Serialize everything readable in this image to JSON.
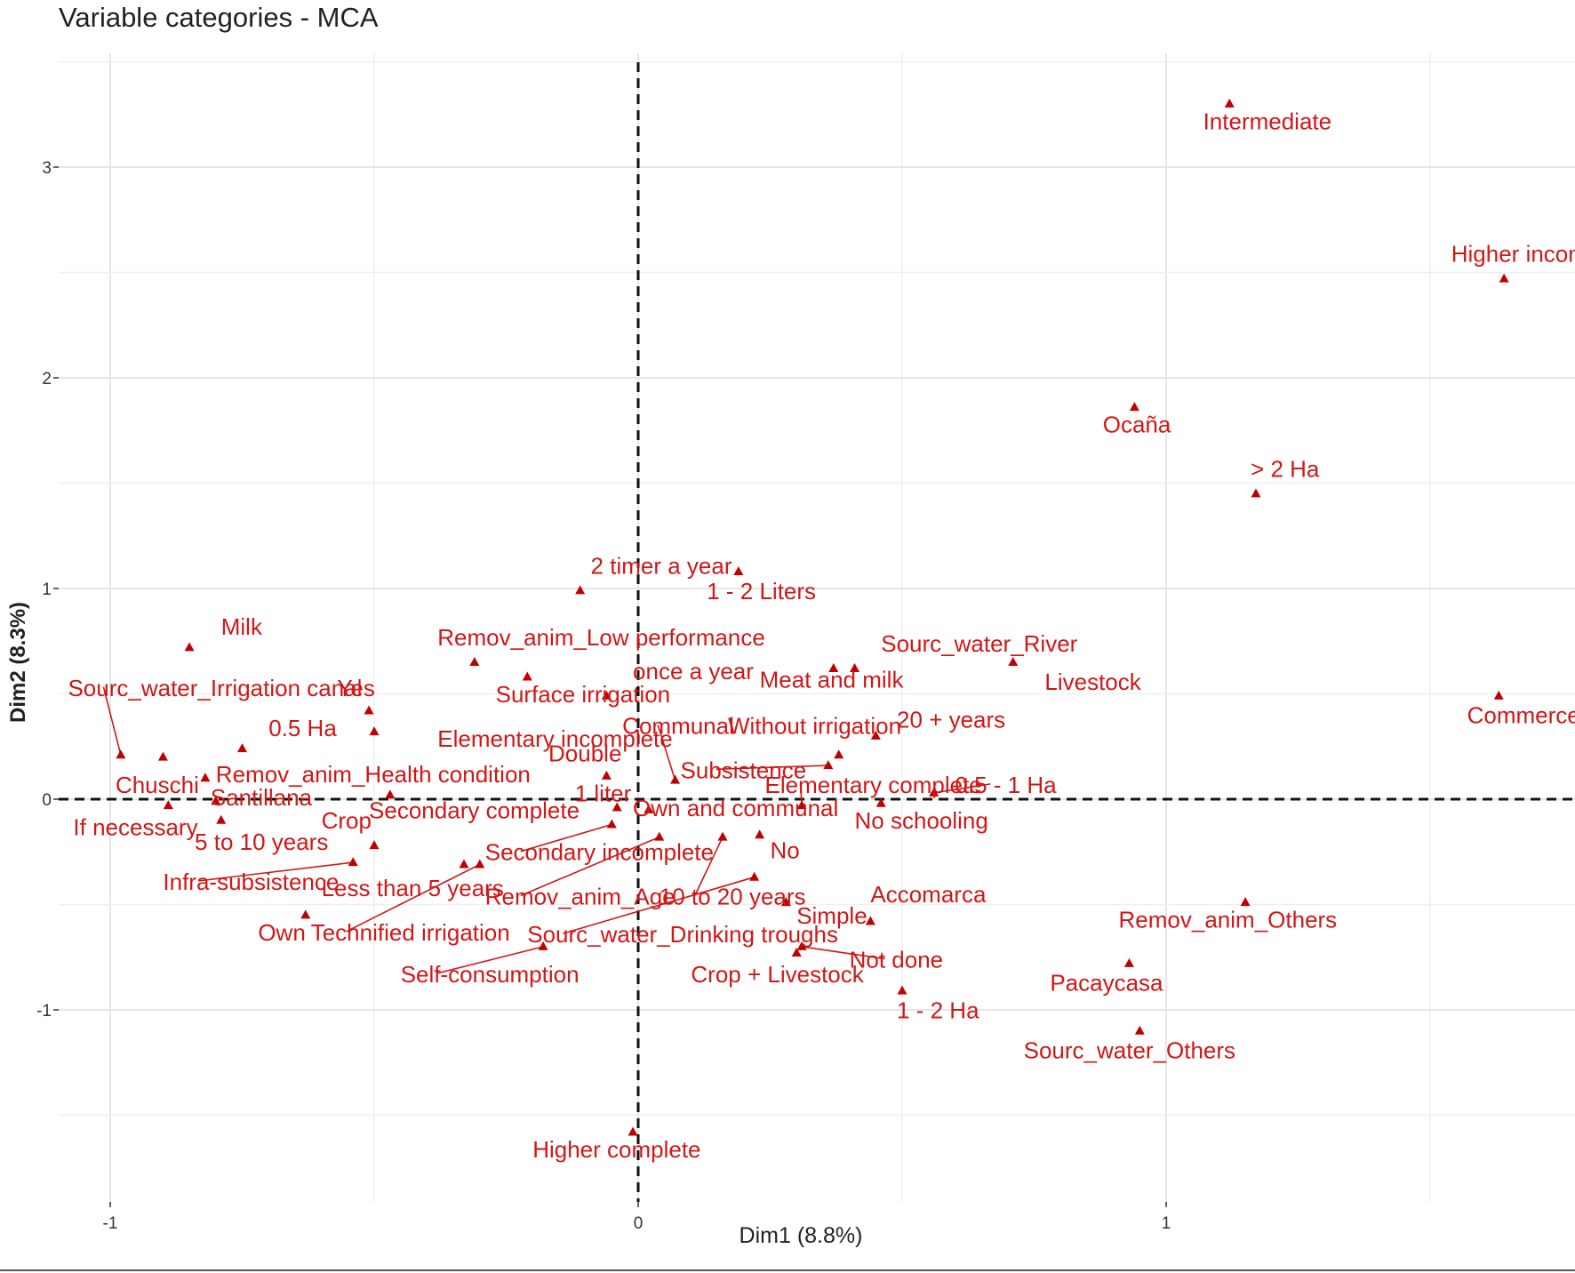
{
  "chart_data": {
    "type": "scatter",
    "title": "Variable categories - MCA",
    "xlabel": "Dim1 (8.8%)",
    "ylabel": "Dim2 (8.3%)",
    "xlim": [
      -1.1,
      1.84
    ],
    "ylim": [
      -1.87,
      3.8
    ],
    "xticks": [
      -1,
      0,
      1
    ],
    "yticks": [
      -1,
      0,
      1,
      2,
      3
    ],
    "grid": true,
    "reference_lines": [
      0,
      0
    ],
    "point_color": "#c00000",
    "label_color": "#d11717",
    "points": [
      {
        "label": "Intermediate",
        "x": 1.12,
        "y": 3.3,
        "label_x": 1.07,
        "label_y": 3.18
      },
      {
        "label": "Higher incomplete",
        "x": 1.64,
        "y": 2.47,
        "label_x": 1.54,
        "label_y": 2.55
      },
      {
        "label": "Ocaña",
        "x": 0.94,
        "y": 1.86,
        "label_x": 0.88,
        "label_y": 1.74
      },
      {
        "label": "> 2 Ha",
        "x": 1.17,
        "y": 1.45,
        "label_x": 1.16,
        "label_y": 1.53
      },
      {
        "label": "2 timer a year",
        "x": -0.11,
        "y": 0.99,
        "label_x": -0.09,
        "label_y": 1.07
      },
      {
        "label": "1 - 2 Liters",
        "x": 0.19,
        "y": 1.08,
        "label_x": 0.13,
        "label_y": 0.95
      },
      {
        "label": "Milk",
        "x": -0.85,
        "y": 0.72,
        "label_x": -0.79,
        "label_y": 0.78
      },
      {
        "label": "Remov_anim_Low performance",
        "x": -0.31,
        "y": 0.65,
        "label_x": -0.38,
        "label_y": 0.73
      },
      {
        "label": "Sourc_water_River",
        "x": 0.37,
        "y": 0.62,
        "label_x": 0.46,
        "label_y": 0.7
      },
      {
        "label": "Meat and milk",
        "x": 0.41,
        "y": 0.62,
        "label_x": 0.23,
        "label_y": 0.53
      },
      {
        "label": "Livestock",
        "x": 0.71,
        "y": 0.65,
        "label_x": 0.77,
        "label_y": 0.52
      },
      {
        "label": "Commerce",
        "x": 1.63,
        "y": 0.49,
        "label_x": 1.57,
        "label_y": 0.36
      },
      {
        "label": "once a year",
        "x": -0.06,
        "y": 0.49,
        "label_x": -0.01,
        "label_y": 0.57
      },
      {
        "label": "Surface irrigation",
        "x": -0.21,
        "y": 0.58,
        "label_x": -0.27,
        "label_y": 0.46
      },
      {
        "label": "Yes",
        "x": -0.51,
        "y": 0.42,
        "label_x": -0.57,
        "label_y": 0.49
      },
      {
        "label": "Sourc_water_Irrigation canal",
        "x": -0.98,
        "y": 0.21,
        "label_x": -1.08,
        "label_y": 0.49,
        "leader": true
      },
      {
        "label": "Elementary incomplete",
        "x": -0.5,
        "y": 0.32,
        "label_x": -0.38,
        "label_y": 0.25
      },
      {
        "label": "0.5 Ha",
        "x": -0.75,
        "y": 0.24,
        "label_x": -0.7,
        "label_y": 0.3
      },
      {
        "label": "Communal",
        "x": 0.07,
        "y": 0.09,
        "label_x": -0.03,
        "label_y": 0.31,
        "leader": true
      },
      {
        "label": "Without irrigation",
        "x": 0.38,
        "y": 0.21,
        "label_x": 0.17,
        "label_y": 0.31
      },
      {
        "label": "20 + years",
        "x": 0.45,
        "y": 0.3,
        "label_x": 0.49,
        "label_y": 0.34
      },
      {
        "label": "Double",
        "x": -0.06,
        "y": 0.11,
        "label_x": -0.17,
        "label_y": 0.18
      },
      {
        "label": "Chuschi",
        "x": -0.9,
        "y": 0.2,
        "label_x": -0.99,
        "label_y": 0.03
      },
      {
        "label": "Remov_anim_Health condition",
        "x": -0.82,
        "y": 0.1,
        "label_x": -0.8,
        "label_y": 0.08
      },
      {
        "label": "Subsistence",
        "x": 0.36,
        "y": 0.16,
        "label_x": 0.08,
        "label_y": 0.1,
        "leader": true
      },
      {
        "label": "Elementary complete",
        "x": 0.31,
        "y": -0.03,
        "label_x": 0.24,
        "label_y": 0.03,
        "leader": true
      },
      {
        "label": "0.5 - 1 Ha",
        "x": 0.56,
        "y": 0.03,
        "label_x": 0.6,
        "label_y": 0.03,
        "leader": true
      },
      {
        "label": "Santillana",
        "x": -0.8,
        "y": -0.01,
        "label_x": -0.81,
        "label_y": -0.03
      },
      {
        "label": "If necessary",
        "x": -0.89,
        "y": -0.03,
        "label_x": -1.07,
        "label_y": -0.17
      },
      {
        "label": "1 liter",
        "x": -0.04,
        "y": -0.04,
        "label_x": -0.12,
        "label_y": -0.01
      },
      {
        "label": "Own and communal",
        "x": 0.02,
        "y": -0.05,
        "label_x": -0.01,
        "label_y": -0.08
      },
      {
        "label": "Secondary complete",
        "x": -0.47,
        "y": 0.02,
        "label_x": -0.51,
        "label_y": -0.09
      },
      {
        "label": "No schooling",
        "x": 0.46,
        "y": -0.02,
        "label_x": 0.41,
        "label_y": -0.14
      },
      {
        "label": "Crop",
        "x": -0.5,
        "y": -0.22,
        "label_x": -0.6,
        "label_y": -0.14
      },
      {
        "label": "5 to 10 years",
        "x": -0.79,
        "y": -0.1,
        "label_x": -0.84,
        "label_y": -0.24
      },
      {
        "label": "Secondary incomplete",
        "x": -0.05,
        "y": -0.12,
        "label_x": -0.29,
        "label_y": -0.29,
        "leader": true
      },
      {
        "label": "No",
        "x": 0.23,
        "y": -0.17,
        "label_x": 0.25,
        "label_y": -0.28
      },
      {
        "label": "Infra-subsistence",
        "x": -0.54,
        "y": -0.3,
        "label_x": -0.9,
        "label_y": -0.43,
        "leader": true
      },
      {
        "label": "Less than 5 years",
        "x": -0.33,
        "y": -0.31,
        "label_x": -0.6,
        "label_y": -0.46
      },
      {
        "label": "Remov_anim_Age",
        "x": 0.04,
        "y": -0.18,
        "label_x": -0.29,
        "label_y": -0.5,
        "leader": true
      },
      {
        "label": "10 to 20 years",
        "x": 0.16,
        "y": -0.18,
        "label_x": 0.04,
        "label_y": -0.5,
        "leader": true
      },
      {
        "label": "Accomarca",
        "x": 0.44,
        "y": -0.58,
        "label_x": 0.44,
        "label_y": -0.49
      },
      {
        "label": "Remov_anim_Others",
        "x": 1.15,
        "y": -0.49,
        "label_x": 0.91,
        "label_y": -0.61
      },
      {
        "label": "Simple",
        "x": 0.28,
        "y": -0.49,
        "label_x": 0.3,
        "label_y": -0.59
      },
      {
        "label": "Own",
        "x": -0.63,
        "y": -0.55,
        "label_x": -0.72,
        "label_y": -0.67
      },
      {
        "label": "Technified irrigation",
        "x": -0.3,
        "y": -0.31,
        "label_x": -0.62,
        "label_y": -0.67,
        "leader": true
      },
      {
        "label": "Sourc_water_Drinking troughs",
        "x": 0.22,
        "y": -0.37,
        "label_x": -0.21,
        "label_y": -0.68,
        "leader": true
      },
      {
        "label": "Self-consumption",
        "x": -0.18,
        "y": -0.7,
        "label_x": -0.45,
        "label_y": -0.87,
        "leader": true
      },
      {
        "label": "Crop + Livestock",
        "x": 0.3,
        "y": -0.73,
        "label_x": 0.1,
        "label_y": -0.87
      },
      {
        "label": "Not done",
        "x": 0.31,
        "y": -0.7,
        "label_x": 0.4,
        "label_y": -0.8,
        "leader": true
      },
      {
        "label": "Pacaycasa",
        "x": 0.93,
        "y": -0.78,
        "label_x": 0.78,
        "label_y": -0.91
      },
      {
        "label": "1 - 2 Ha",
        "x": 0.5,
        "y": -0.91,
        "label_x": 0.49,
        "label_y": -1.04
      },
      {
        "label": "Sourc_water_Others",
        "x": 0.95,
        "y": -1.1,
        "label_x": 0.73,
        "label_y": -1.23
      },
      {
        "label": "Higher complete",
        "x": -0.01,
        "y": -1.58,
        "label_x": -0.2,
        "label_y": -1.7
      }
    ]
  }
}
